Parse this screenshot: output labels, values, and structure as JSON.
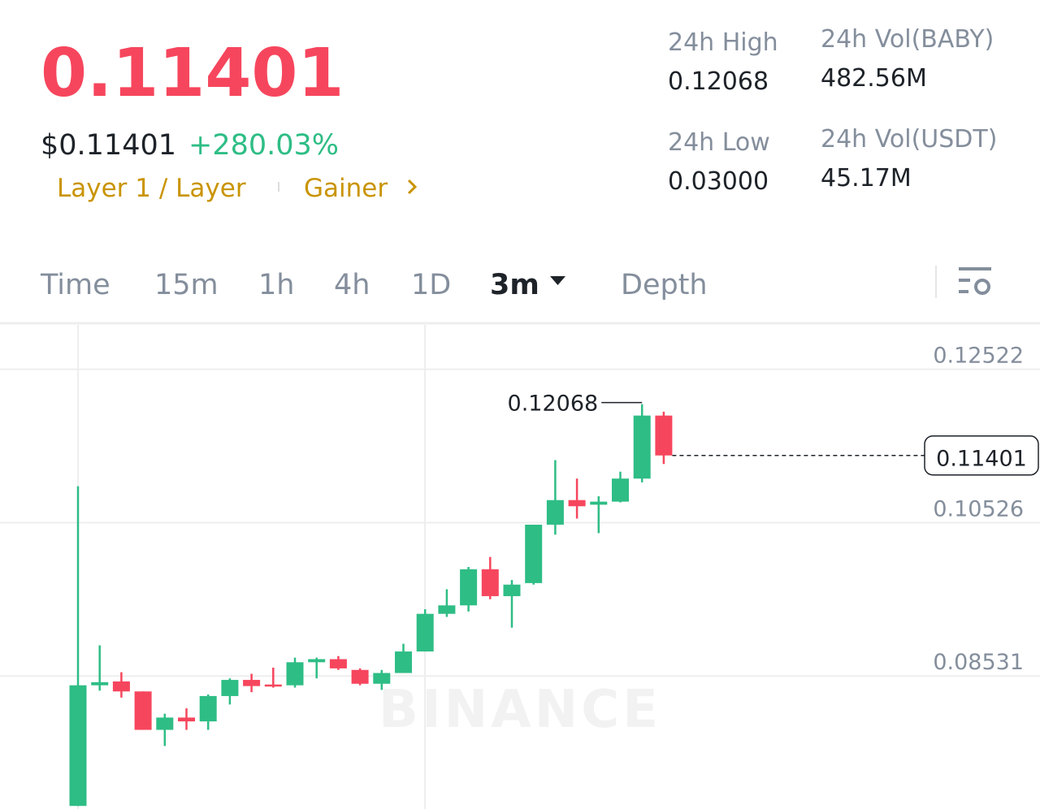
{
  "header": {
    "price": "0.11401",
    "usd_price": "$0.11401",
    "change": "+280.03%",
    "tags": [
      "Layer 1 / Layer",
      "Gainer"
    ],
    "stats": [
      {
        "label": "24h High",
        "value": "0.12068"
      },
      {
        "label": "24h Vol(BABY)",
        "value": "482.56M"
      },
      {
        "label": "24h Low",
        "value": "0.03000"
      },
      {
        "label": "24h Vol(USDT)",
        "value": "45.17M"
      }
    ]
  },
  "tabs": [
    "Time",
    "15m",
    "1h",
    "4h",
    "1D",
    "3m",
    "Depth"
  ],
  "watermark": "BINANCE",
  "chart_data": {
    "type": "candlestick",
    "up_color": "#2ebd85",
    "down_color": "#f6465d",
    "open": [
      0.0684,
      0.0841,
      0.0846,
      0.0833,
      0.0783,
      0.0799,
      0.0794,
      0.0827,
      0.0848,
      0.0842,
      0.0841,
      0.0871,
      0.0875,
      0.0861,
      0.0843,
      0.0857,
      0.0885,
      0.0934,
      0.0945,
      0.0992,
      0.0957,
      0.0974,
      0.105,
      0.1082,
      0.1076,
      0.108,
      0.111,
      0.1192
    ],
    "high": [
      0.11,
      0.0893,
      0.0858,
      0.0833,
      0.0804,
      0.0811,
      0.0829,
      0.085,
      0.0856,
      0.0864,
      0.0877,
      0.0877,
      0.0879,
      0.0863,
      0.0861,
      0.0895,
      0.094,
      0.0966,
      0.0995,
      0.1008,
      0.0978,
      0.105,
      0.1134,
      0.111,
      0.1087,
      0.1119,
      0.12068,
      0.1197
    ],
    "low": [
      0.0684,
      0.0834,
      0.0825,
      0.0783,
      0.0762,
      0.0783,
      0.0783,
      0.0816,
      0.0832,
      0.0838,
      0.0838,
      0.085,
      0.0861,
      0.0841,
      0.0835,
      0.0857,
      0.0885,
      0.093,
      0.0937,
      0.0953,
      0.0916,
      0.0972,
      0.1037,
      0.1058,
      0.1039,
      0.1079,
      0.1105,
      0.1129
    ],
    "close": [
      0.0841,
      0.0845,
      0.0833,
      0.0783,
      0.0799,
      0.0794,
      0.0827,
      0.0848,
      0.084,
      0.084,
      0.0871,
      0.0875,
      0.0863,
      0.0843,
      0.0857,
      0.0885,
      0.0934,
      0.0945,
      0.0992,
      0.0957,
      0.0972,
      0.105,
      0.1082,
      0.1074,
      0.108,
      0.111,
      0.1192,
      0.11401
    ],
    "ylim": [
      0.068,
      0.131
    ],
    "yticks": [
      0.08531,
      0.10526,
      0.12522
    ],
    "grid": true
  }
}
